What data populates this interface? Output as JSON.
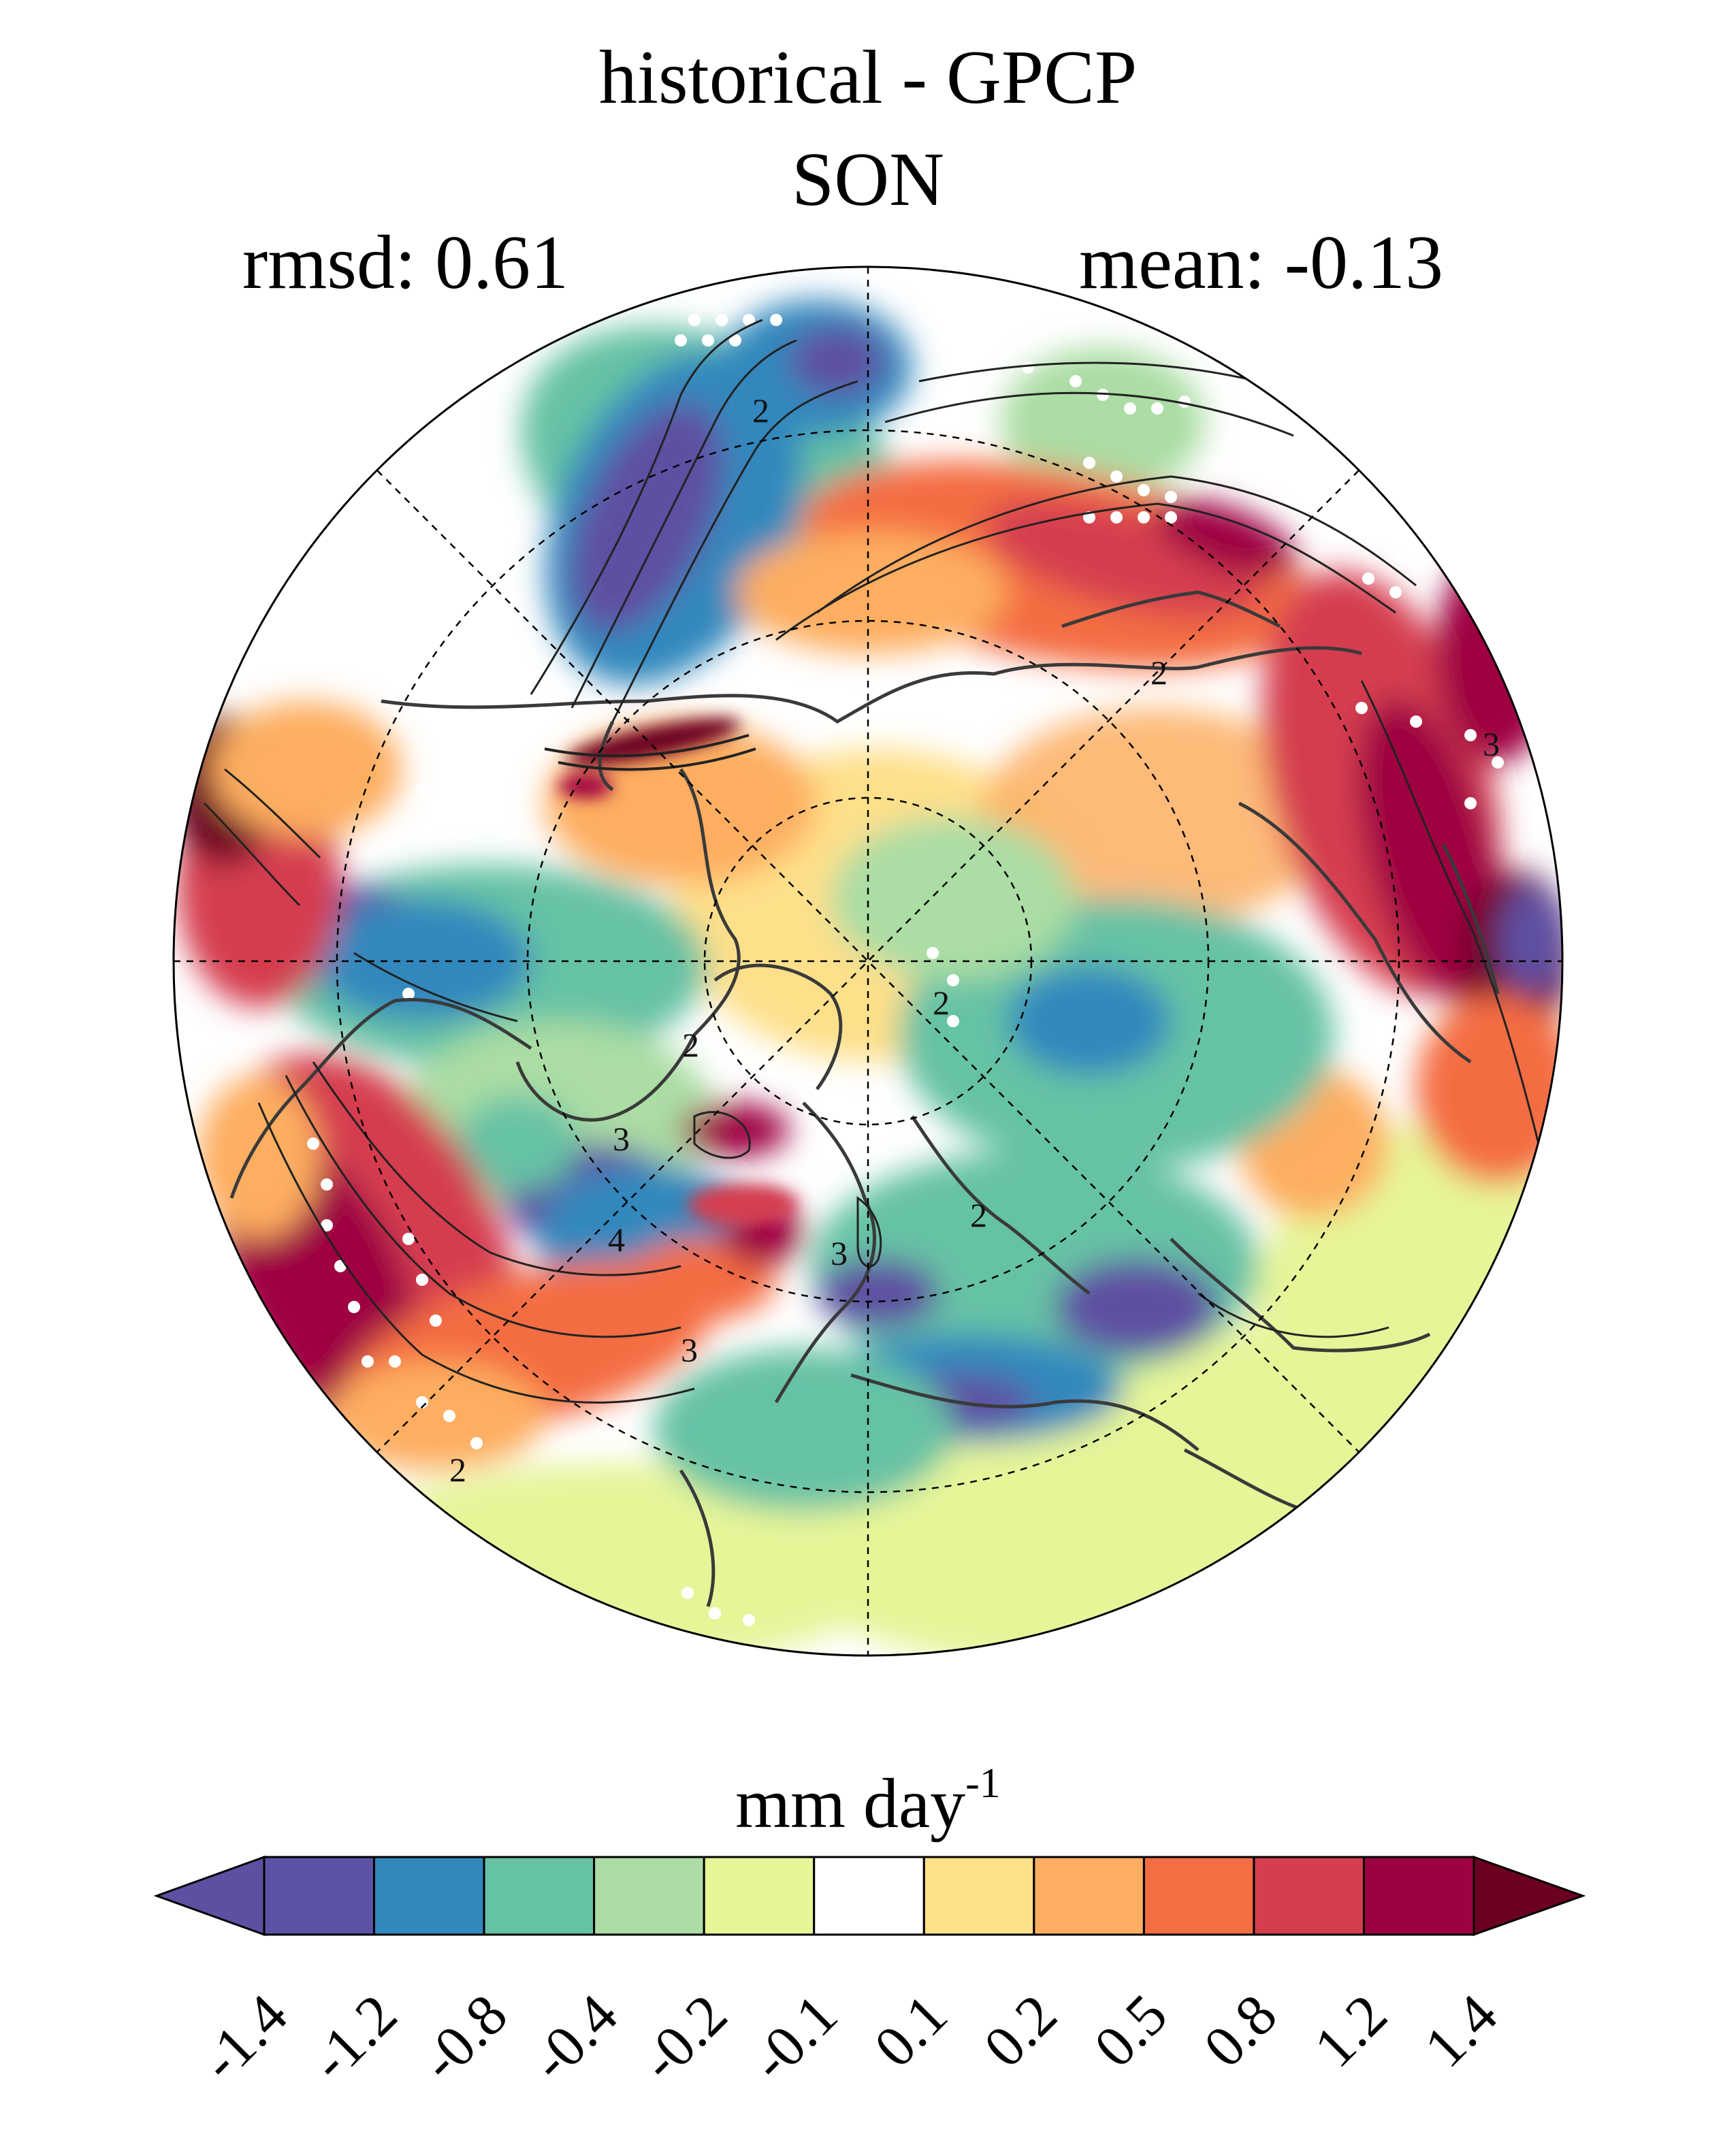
{
  "title": "historical - GPCP",
  "season": "SON",
  "rmsd_label": "rmsd: 0.61",
  "mean_label": "mean: -0.13",
  "colorbar": {
    "units": "mm day",
    "units_exponent": "-1",
    "ticks": [
      "-1.4",
      "-1.2",
      "-0.8",
      "-0.4",
      "-0.2",
      "-0.1",
      "0.1",
      "0.2",
      "0.5",
      "0.8",
      "1.2",
      "1.4"
    ],
    "colors": [
      "#5e4fa2",
      "#5a53a6",
      "#3288bd",
      "#66c2a5",
      "#abdda4",
      "#e6f598",
      "#ffffff",
      "#fee08b",
      "#fdae61",
      "#f46d43",
      "#d53e4f",
      "#9e0142",
      "#6b0020"
    ]
  },
  "map": {
    "projection": "north-polar-stereographic",
    "contour_labels": [
      "2",
      "2",
      "3",
      "2",
      "3",
      "4",
      "3",
      "2",
      "2",
      "2",
      "3"
    ]
  }
}
